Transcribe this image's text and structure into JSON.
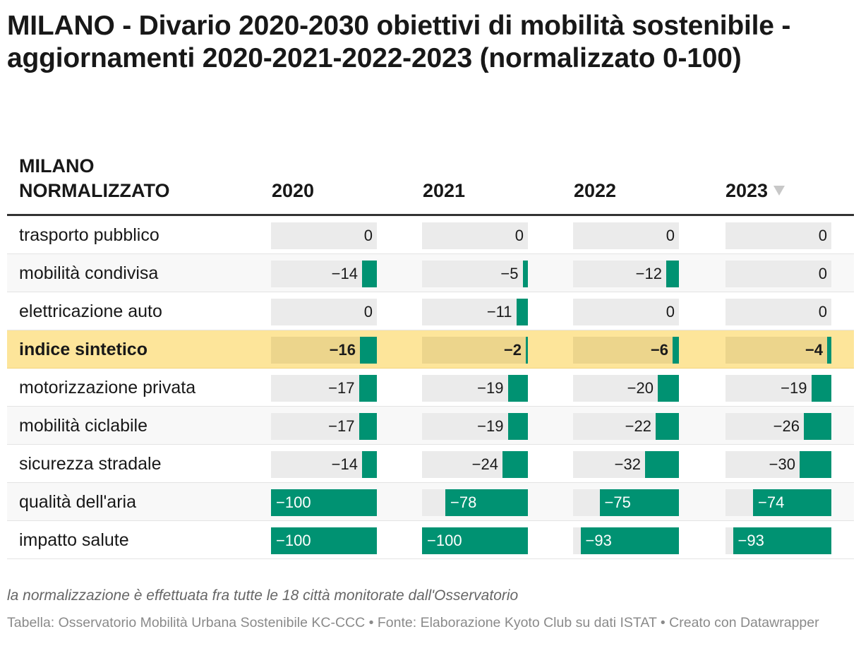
{
  "title": "MILANO - Divario 2020-2030 obiettivi di mobilità sostenibile - aggiornamenti 2020-2021-2022-2023 (normalizzato 0-100)",
  "colors": {
    "bar": "#009272",
    "highlight": "#fde59a",
    "cell_bg": "#ebebeb"
  },
  "chart_data": {
    "type": "table",
    "row_header": "MILANO NORMALIZZATO",
    "columns": [
      "2020",
      "2021",
      "2022",
      "2023"
    ],
    "sorted_column": "2023",
    "sort_icon": "sort-descending-icon",
    "value_range": [
      -100,
      0
    ],
    "highlight_row": "indice sintetico",
    "rows": [
      {
        "label": "trasporto pubblico",
        "values": [
          "0",
          "0",
          "0",
          "0"
        ]
      },
      {
        "label": "mobilità condivisa",
        "values": [
          "−14",
          "−5",
          "−12",
          "0"
        ]
      },
      {
        "label": "elettricazione auto",
        "values": [
          "0",
          "−11",
          "0",
          "0"
        ]
      },
      {
        "label": "indice sintetico",
        "values": [
          "−16",
          "−2",
          "−6",
          "−4"
        ]
      },
      {
        "label": "motorizzazione privata",
        "values": [
          "−17",
          "−19",
          "−20",
          "−19"
        ]
      },
      {
        "label": "mobilità ciclabile",
        "values": [
          "−17",
          "−19",
          "−22",
          "−26"
        ]
      },
      {
        "label": "sicurezza stradale",
        "values": [
          "−14",
          "−24",
          "−32",
          "−30"
        ]
      },
      {
        "label": "qualità dell'aria",
        "values": [
          "−100",
          "−78",
          "−75",
          "−74"
        ]
      },
      {
        "label": "impatto salute",
        "values": [
          "−100",
          "−100",
          "−93",
          "−93"
        ]
      }
    ]
  },
  "note": "la normalizzazione è effettuata fra tutte le 18 città monitorate dall'Osservatorio",
  "source": "Tabella: Osservatorio Mobilità Urbana Sostenibile KC-CCC • Fonte: Elaborazione Kyoto Club su dati ISTAT • Creato con Datawrapper"
}
